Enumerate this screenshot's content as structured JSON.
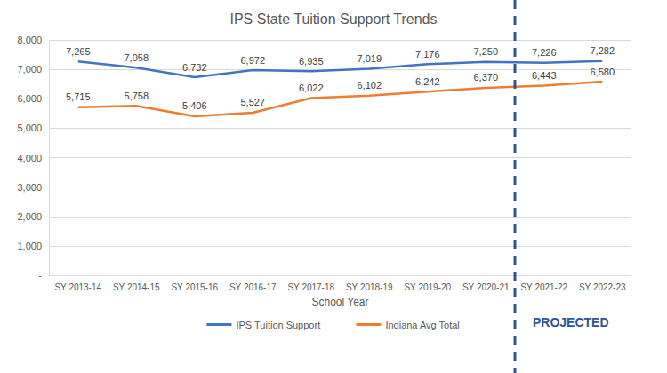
{
  "chart_data": {
    "type": "line",
    "title": "IPS State Tuition Support Trends",
    "xlabel": "School Year",
    "categories": [
      "SY 2013-14",
      "SY 2014-15",
      "SY 2015-16",
      "SY 2016-17",
      "SY 2017-18",
      "SY 2018-19",
      "SY 2019-20",
      "SY 2020-21",
      "SY 2021-22",
      "SY 2022-23"
    ],
    "series": [
      {
        "name": "IPS Tuition Support",
        "color": "#4472c4",
        "values": [
          7265,
          7058,
          6732,
          6972,
          6935,
          7019,
          7176,
          7250,
          7226,
          7282
        ],
        "value_labels": [
          "7,265",
          "7,058",
          "6,732",
          "6,972",
          "6,935",
          "7,019",
          "7,176",
          "7,250",
          "7,226",
          "7,282"
        ]
      },
      {
        "name": "Indiana Avg Total",
        "color": "#ed7d31",
        "values": [
          5715,
          5758,
          5406,
          5527,
          6022,
          6102,
          6242,
          6370,
          6443,
          6580
        ],
        "value_labels": [
          "5,715",
          "5,758",
          "5,406",
          "5,527",
          "6,022",
          "6,102",
          "6,242",
          "6,370",
          "6,443",
          "6,580"
        ]
      }
    ],
    "ylim": [
      0,
      8000
    ],
    "yticks": [
      {
        "value": 0,
        "label": "-"
      },
      {
        "value": 1000,
        "label": "1,000"
      },
      {
        "value": 2000,
        "label": "2,000"
      },
      {
        "value": 3000,
        "label": "3,000"
      },
      {
        "value": 4000,
        "label": "4,000"
      },
      {
        "value": 5000,
        "label": "5,000"
      },
      {
        "value": 6000,
        "label": "6,000"
      },
      {
        "value": 7000,
        "label": "7,000"
      },
      {
        "value": 8000,
        "label": "8,000"
      }
    ],
    "grid": true,
    "legend": "bottom",
    "data_labels": true,
    "annotations": [
      {
        "text": "PROJECTED",
        "from": "SY 2021-22"
      }
    ]
  }
}
